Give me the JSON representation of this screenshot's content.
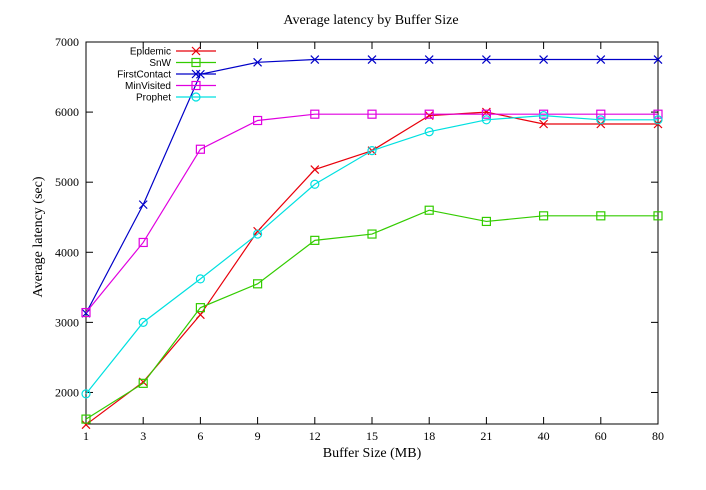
{
  "chart_data": {
    "type": "line",
    "title": "Average latency by Buffer Size",
    "xlabel": "Buffer Size (MB)",
    "ylabel": "Average latency (sec)",
    "categories": [
      "1",
      "3",
      "6",
      "9",
      "12",
      "15",
      "18",
      "21",
      "40",
      "60",
      "80"
    ],
    "ylim": [
      1550,
      7000
    ],
    "yticks": [
      2000,
      3000,
      4000,
      5000,
      6000,
      7000
    ],
    "legend_position": "top-left",
    "grid": false,
    "series": [
      {
        "name": "Epidemic",
        "color": "#e8000b",
        "marker": "x",
        "values": [
          1540,
          2150,
          3110,
          4300,
          5180,
          5450,
          5950,
          6000,
          5830,
          5830,
          5830
        ]
      },
      {
        "name": "SnW",
        "color": "#33cc00",
        "marker": "square",
        "values": [
          1620,
          2130,
          3210,
          3550,
          4170,
          4260,
          4600,
          4440,
          4520,
          4520,
          4520
        ]
      },
      {
        "name": "FirstContact",
        "color": "#0000c8",
        "marker": "x",
        "values": [
          3130,
          4680,
          6540,
          6710,
          6750,
          6750,
          6750,
          6750,
          6750,
          6750,
          6750
        ]
      },
      {
        "name": "MinVisited",
        "color": "#e000e0",
        "marker": "square",
        "values": [
          3140,
          4140,
          5470,
          5880,
          5970,
          5970,
          5970,
          5970,
          5970,
          5970,
          5970
        ]
      },
      {
        "name": "Prophet",
        "color": "#00e0e0",
        "marker": "circle",
        "values": [
          1980,
          3000,
          3620,
          4260,
          4970,
          5450,
          5720,
          5890,
          5950,
          5890,
          5890
        ]
      }
    ]
  }
}
